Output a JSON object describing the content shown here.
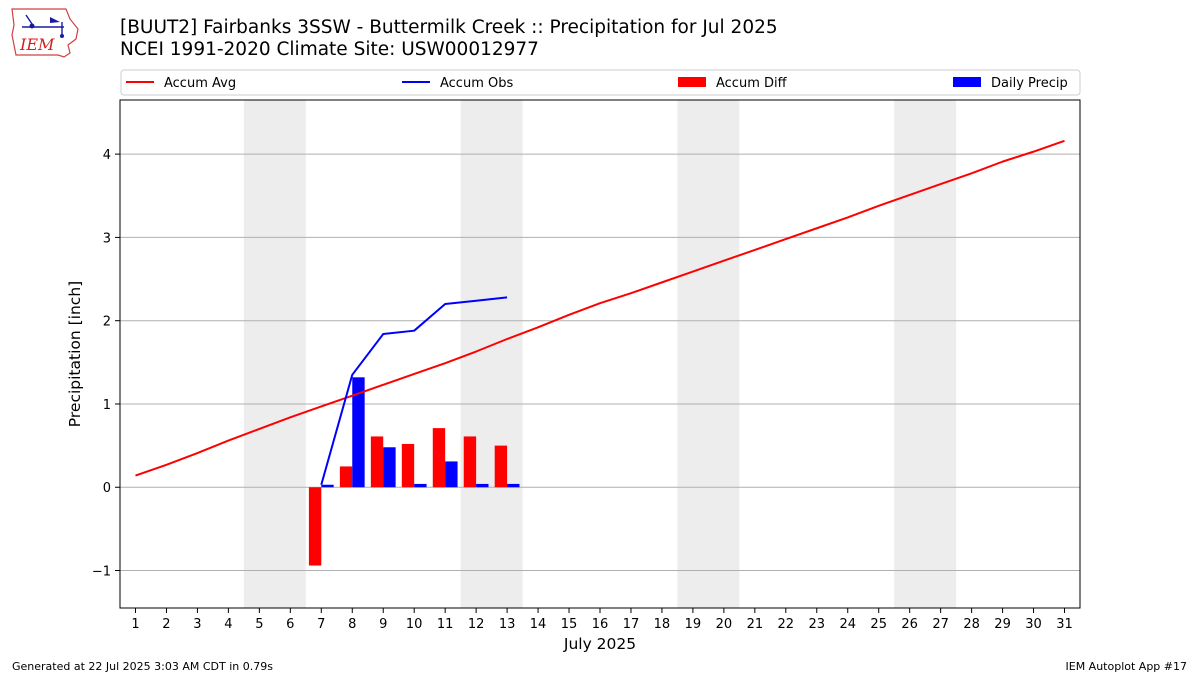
{
  "header": {
    "title_line1": "[BUUT2] Fairbanks 3SSW - Buttermilk Creek :: Precipitation for Jul 2025",
    "title_line2": "NCEI 1991-2020 Climate Site: USW00012977",
    "logo_text": "IEM"
  },
  "footer": {
    "generated": "Generated at 22 Jul 2025 3:03 AM CDT in 0.79s",
    "app": "IEM Autoplot App #17"
  },
  "colors": {
    "accum_avg": "#ff0000",
    "accum_obs": "#0000ff",
    "accum_diff": "#ff0000",
    "daily_precip": "#0000ff",
    "weekend_shade": "#ededed",
    "grid": "#b0b0b0"
  },
  "chart_data": {
    "type": "bar",
    "xlabel": "July 2025",
    "ylabel": "Precipitation [inch]",
    "xlim": [
      0.5,
      31.5
    ],
    "ylim": [
      -1.45,
      4.65
    ],
    "x_ticks": [
      1,
      2,
      3,
      4,
      5,
      6,
      7,
      8,
      9,
      10,
      11,
      12,
      13,
      14,
      15,
      16,
      17,
      18,
      19,
      20,
      21,
      22,
      23,
      24,
      25,
      26,
      27,
      28,
      29,
      30,
      31
    ],
    "y_ticks": [
      -1,
      0,
      1,
      2,
      3,
      4
    ],
    "y_tick_labels": [
      "−1",
      "0",
      "1",
      "2",
      "3",
      "4"
    ],
    "grid": "horizontal",
    "legend_placement": "top",
    "legend": [
      {
        "label": "Accum Avg",
        "kind": "line",
        "color": "#ff0000"
      },
      {
        "label": "Accum Obs",
        "kind": "line",
        "color": "#0000ff"
      },
      {
        "label": "Accum Diff",
        "kind": "bar",
        "color": "#ff0000"
      },
      {
        "label": "Daily Precip",
        "kind": "bar",
        "color": "#0000ff"
      }
    ],
    "weekend_shading": [
      [
        4.5,
        6.5
      ],
      [
        11.5,
        13.5
      ],
      [
        18.5,
        20.5
      ],
      [
        25.5,
        27.5
      ]
    ],
    "series": [
      {
        "name": "Accum Avg",
        "type": "line",
        "color": "#ff0000",
        "x": [
          1,
          2,
          3,
          4,
          5,
          6,
          7,
          8,
          9,
          10,
          11,
          12,
          13,
          14,
          15,
          16,
          17,
          18,
          19,
          20,
          21,
          22,
          23,
          24,
          25,
          26,
          27,
          28,
          29,
          30,
          31
        ],
        "values": [
          0.14,
          0.27,
          0.41,
          0.56,
          0.7,
          0.84,
          0.97,
          1.1,
          1.23,
          1.36,
          1.49,
          1.63,
          1.78,
          1.92,
          2.07,
          2.21,
          2.33,
          2.46,
          2.59,
          2.72,
          2.85,
          2.98,
          3.11,
          3.24,
          3.38,
          3.51,
          3.64,
          3.77,
          3.91,
          4.03,
          4.16
        ]
      },
      {
        "name": "Accum Obs",
        "type": "line",
        "color": "#0000ff",
        "x": [
          7,
          8,
          9,
          10,
          11,
          12,
          13
        ],
        "values": [
          0.03,
          1.35,
          1.84,
          1.88,
          2.2,
          2.24,
          2.28
        ]
      },
      {
        "name": "Accum Diff",
        "type": "bar",
        "color": "#ff0000",
        "x": [
          7,
          8,
          9,
          10,
          11,
          12,
          13
        ],
        "values": [
          -0.94,
          0.25,
          0.61,
          0.52,
          0.71,
          0.61,
          0.5
        ]
      },
      {
        "name": "Daily Precip",
        "type": "bar",
        "color": "#0000ff",
        "x": [
          7,
          8,
          9,
          10,
          11,
          12,
          13
        ],
        "values": [
          0.03,
          1.32,
          0.48,
          0.04,
          0.31,
          0.04,
          0.04
        ]
      }
    ]
  }
}
